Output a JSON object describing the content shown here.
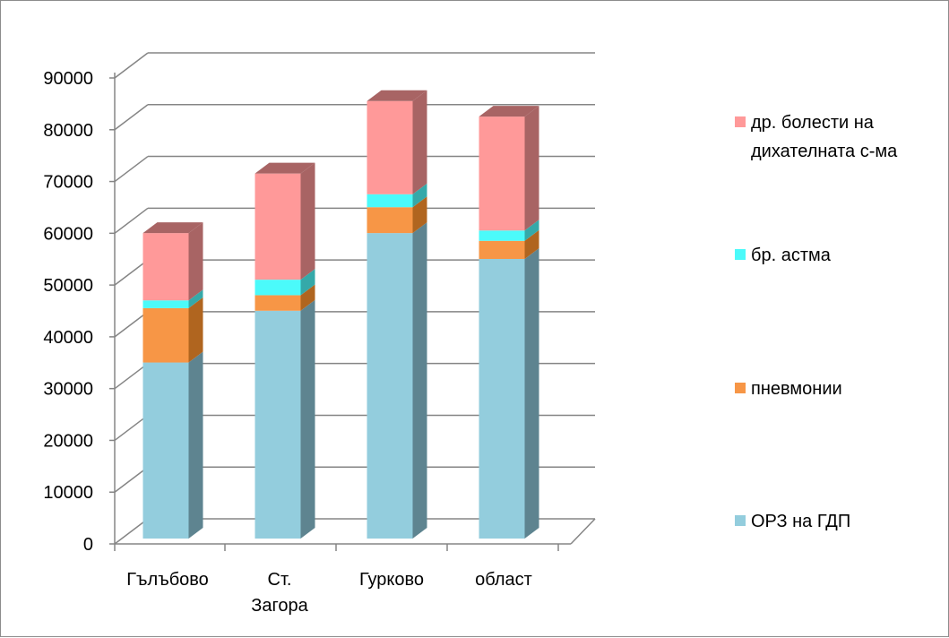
{
  "chart_data": {
    "type": "bar",
    "stacked": true,
    "three_d": true,
    "categories": [
      [
        "Гълъбово"
      ],
      [
        "Ст.",
        "Загора"
      ],
      [
        "Гурково"
      ],
      [
        "област"
      ]
    ],
    "series": [
      {
        "name": "ОРЗ на ГДП",
        "values": [
          34000,
          44000,
          59000,
          54000
        ],
        "color": "#93CDDD",
        "side_color": "#5E8490"
      },
      {
        "name": "пневмонии",
        "values": [
          10500,
          3000,
          5000,
          3500
        ],
        "color": "#F79646",
        "side_color": "#B0651F"
      },
      {
        "name": "бр. астма",
        "values": [
          1500,
          3000,
          2500,
          2000
        ],
        "color": "#4BFAFA",
        "side_color": "#35A9A9"
      },
      {
        "name": "др. болести на дихателната с-ма",
        "name_lines": [
          "др. болести на",
          "дихателната с-ма"
        ],
        "values": [
          13000,
          20500,
          18000,
          22000
        ],
        "color": "#FF9999",
        "side_color": "#A86464"
      }
    ],
    "y_ticks": [
      "0",
      "10000",
      "20000",
      "30000",
      "40000",
      "50000",
      "60000",
      "70000",
      "80000",
      "90000"
    ],
    "ylim": [
      0,
      90000
    ],
    "grid": true,
    "legend_position": "right",
    "legend_order": "reverse",
    "gridline_color": "#858585",
    "axis_color": "#858585"
  }
}
